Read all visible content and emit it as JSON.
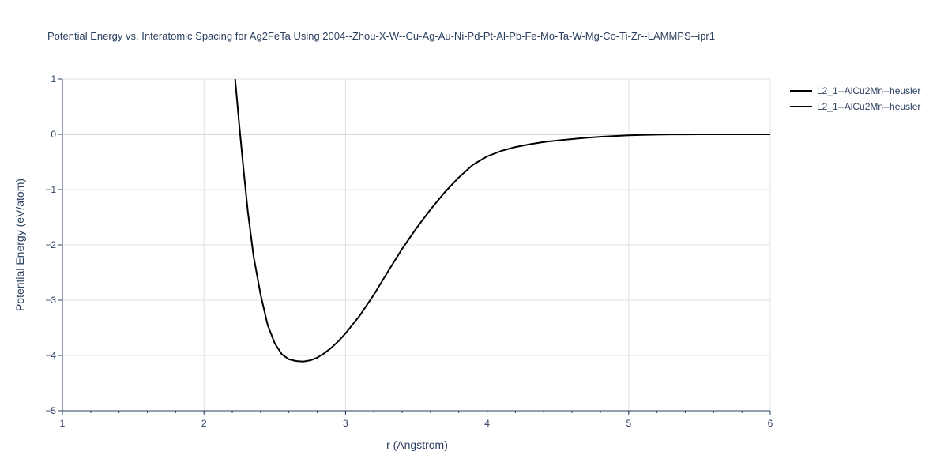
{
  "chart_data": {
    "type": "line",
    "title": "Potential Energy vs. Interatomic Spacing for Ag2FeTa Using 2004--Zhou-X-W--Cu-Ag-Au-Ni-Pd-Pt-Al-Pb-Fe-Mo-Ta-W-Mg-Co-Ti-Zr--LAMMPS--ipr1",
    "xlabel": "r (Angstrom)",
    "ylabel": "Potential Energy (eV/atom)",
    "xlim": [
      1,
      6
    ],
    "ylim": [
      -5,
      1
    ],
    "x_ticks": [
      1,
      2,
      3,
      4,
      5,
      6
    ],
    "y_ticks": [
      1,
      0,
      -1,
      -2,
      -3,
      -4,
      -5
    ],
    "x_tick_labels": [
      "1",
      "2",
      "3",
      "4",
      "5",
      "6"
    ],
    "y_tick_labels": [
      "1",
      "0",
      "−1",
      "−2",
      "−3",
      "−4",
      "−5"
    ],
    "grid": true,
    "legend_position": "top-right",
    "series_color": "#000000",
    "series": [
      {
        "name": "L2_1--AlCu2Mn--heusler",
        "x": [
          2.22,
          2.25,
          2.28,
          2.31,
          2.35,
          2.4,
          2.45,
          2.5,
          2.55,
          2.6,
          2.65,
          2.7,
          2.75,
          2.8,
          2.85,
          2.9,
          2.95,
          3.0,
          3.1,
          3.2,
          3.3,
          3.4,
          3.5,
          3.6,
          3.7,
          3.8,
          3.9,
          4.0,
          4.1,
          4.2,
          4.3,
          4.4,
          4.5,
          4.6,
          4.7,
          4.8,
          4.9,
          5.0,
          5.1,
          5.2,
          5.3,
          5.4,
          5.5,
          5.6,
          5.7,
          5.8,
          5.9,
          6.0
        ],
        "y": [
          1.0,
          0.15,
          -0.65,
          -1.4,
          -2.2,
          -2.9,
          -3.45,
          -3.78,
          -3.98,
          -4.07,
          -4.1,
          -4.11,
          -4.09,
          -4.04,
          -3.96,
          -3.86,
          -3.74,
          -3.6,
          -3.28,
          -2.9,
          -2.48,
          -2.07,
          -1.7,
          -1.36,
          -1.05,
          -0.78,
          -0.55,
          -0.4,
          -0.3,
          -0.23,
          -0.18,
          -0.14,
          -0.11,
          -0.085,
          -0.062,
          -0.044,
          -0.03,
          -0.018,
          -0.01,
          -0.005,
          -0.002,
          -0.001,
          0.0,
          0.0,
          0.0,
          0.0,
          0.0,
          0.0
        ]
      },
      {
        "name": "L2_1--AlCu2Mn--heusler",
        "x": [],
        "y": []
      }
    ]
  }
}
